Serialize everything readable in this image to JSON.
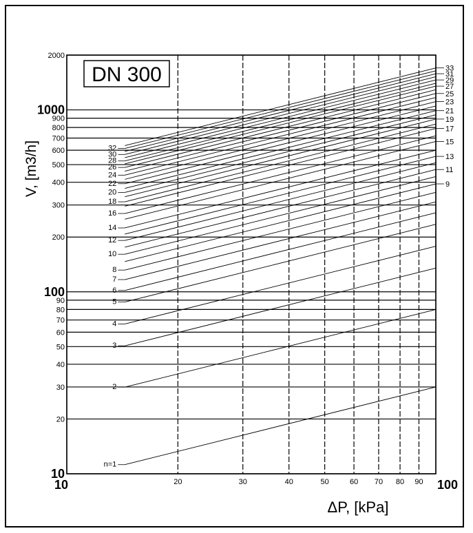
{
  "chart_data": {
    "type": "line",
    "title": "DN 300",
    "xlabel": "ΔP, [kPa]",
    "ylabel": "V, [m3/h]",
    "xscale": "log",
    "yscale": "log",
    "xlim": [
      10,
      100
    ],
    "ylim": [
      10,
      2000
    ],
    "grid": true,
    "x_ticks": [
      10,
      20,
      30,
      40,
      50,
      60,
      70,
      80,
      90,
      100
    ],
    "x_tick_labels": [
      "10",
      "20",
      "30",
      "40",
      "50",
      "60",
      "70",
      "80",
      "90",
      "100"
    ],
    "x_major_ticks": [
      "10",
      "100"
    ],
    "y_ticks": [
      10,
      20,
      30,
      40,
      50,
      60,
      70,
      80,
      90,
      100,
      200,
      300,
      400,
      500,
      600,
      700,
      800,
      900,
      1000,
      2000
    ],
    "y_tick_labels": [
      "10",
      "20",
      "30",
      "40",
      "50",
      "60",
      "70",
      "80",
      "90",
      "100",
      "200",
      "300",
      "400",
      "500",
      "600",
      "700",
      "800",
      "900",
      "1000",
      "2000"
    ],
    "y_major_ticks": [
      "10",
      "100",
      "1000"
    ],
    "line_x_range": [
      14,
      100
    ],
    "curve_slope": 0.5,
    "series": [
      {
        "name": "n=1",
        "label": "n=1",
        "v_at_100": 30,
        "label_side": "left"
      },
      {
        "name": "2",
        "label": "2",
        "v_at_100": 80,
        "label_side": "left"
      },
      {
        "name": "3",
        "label": "3",
        "v_at_100": 135,
        "label_side": "left"
      },
      {
        "name": "4",
        "label": "4",
        "v_at_100": 178,
        "label_side": "left"
      },
      {
        "name": "5",
        "label": "5",
        "v_at_100": 235,
        "label_side": "left"
      },
      {
        "name": "6",
        "label": "6",
        "v_at_100": 272,
        "label_side": "left"
      },
      {
        "name": "7",
        "label": "7",
        "v_at_100": 312,
        "label_side": "left"
      },
      {
        "name": "8",
        "label": "8",
        "v_at_100": 352,
        "label_side": "left"
      },
      {
        "name": "9",
        "label": "9",
        "v_at_100": 392,
        "label_side": "right"
      },
      {
        "name": "10",
        "label": "10",
        "v_at_100": 430,
        "label_side": "left"
      },
      {
        "name": "11",
        "label": "11",
        "v_at_100": 470,
        "label_side": "right"
      },
      {
        "name": "12",
        "label": "12",
        "v_at_100": 512,
        "label_side": "left"
      },
      {
        "name": "13",
        "label": "13",
        "v_at_100": 555,
        "label_side": "right"
      },
      {
        "name": "14",
        "label": "14",
        "v_at_100": 600,
        "label_side": "left"
      },
      {
        "name": "15",
        "label": "15",
        "v_at_100": 670,
        "label_side": "right"
      },
      {
        "name": "16",
        "label": "16",
        "v_at_100": 720,
        "label_side": "left"
      },
      {
        "name": "17",
        "label": "17",
        "v_at_100": 790,
        "label_side": "right"
      },
      {
        "name": "18",
        "label": "18",
        "v_at_100": 835,
        "label_side": "left"
      },
      {
        "name": "19",
        "label": "19",
        "v_at_100": 890,
        "label_side": "right"
      },
      {
        "name": "20",
        "label": "20",
        "v_at_100": 940,
        "label_side": "left"
      },
      {
        "name": "21",
        "label": "21",
        "v_at_100": 990,
        "label_side": "right"
      },
      {
        "name": "22",
        "label": "22",
        "v_at_100": 1050,
        "label_side": "left"
      },
      {
        "name": "23",
        "label": "23",
        "v_at_100": 1110,
        "label_side": "right"
      },
      {
        "name": "24",
        "label": "24",
        "v_at_100": 1170,
        "label_side": "left"
      },
      {
        "name": "25",
        "label": "25",
        "v_at_100": 1230,
        "label_side": "right"
      },
      {
        "name": "26",
        "label": "26",
        "v_at_100": 1290,
        "label_side": "left"
      },
      {
        "name": "27",
        "label": "27",
        "v_at_100": 1350,
        "label_side": "right"
      },
      {
        "name": "28",
        "label": "28",
        "v_at_100": 1400,
        "label_side": "left"
      },
      {
        "name": "29",
        "label": "29",
        "v_at_100": 1460,
        "label_side": "right"
      },
      {
        "name": "30",
        "label": "30",
        "v_at_100": 1520,
        "label_side": "left"
      },
      {
        "name": "31",
        "label": "31",
        "v_at_100": 1580,
        "label_side": "right"
      },
      {
        "name": "32",
        "label": "32",
        "v_at_100": 1640,
        "label_side": "left"
      },
      {
        "name": "33",
        "label": "33",
        "v_at_100": 1700,
        "label_side": "right"
      }
    ]
  }
}
